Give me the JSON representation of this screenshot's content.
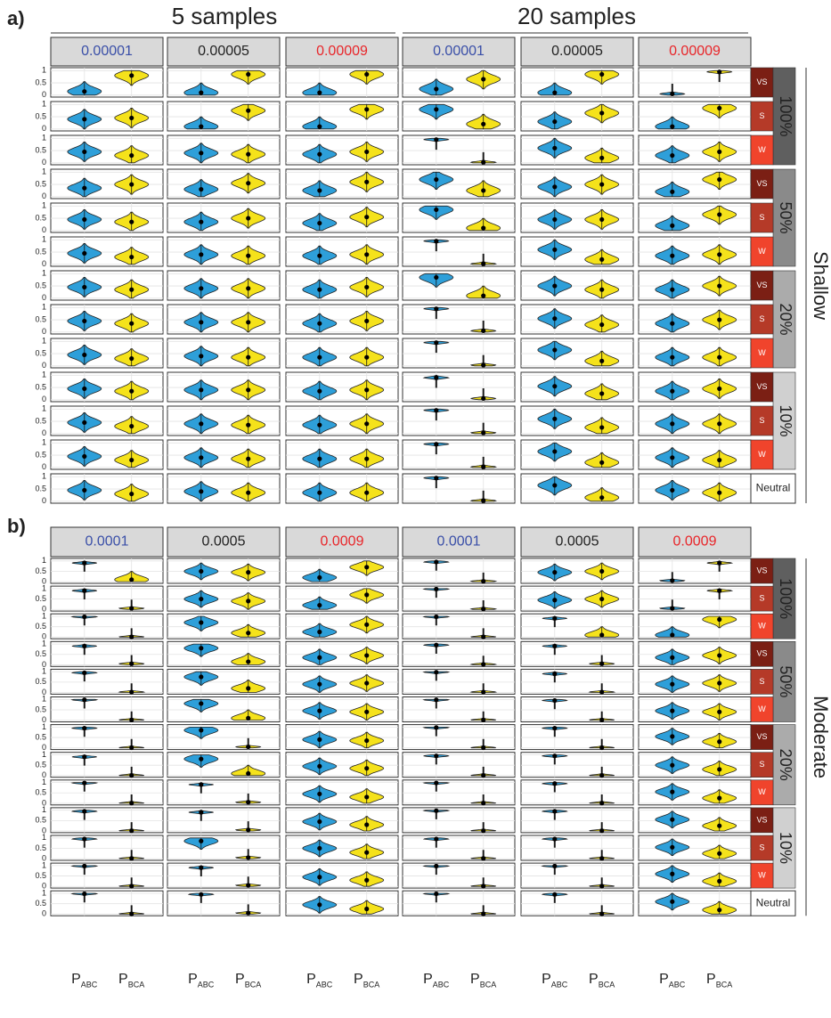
{
  "chart_data": {
    "type": "violin",
    "ylim": [
      -0.08,
      1.12
    ],
    "yticks": [
      0,
      0.5,
      1
    ],
    "grid": true,
    "x_symbol": "P",
    "categories": [
      "ABC",
      "BCA"
    ],
    "colors": [
      "#2e9fd9",
      "#f5e21b"
    ],
    "rate_colors": [
      "#3a4fa8",
      "#222222",
      "#e8262a"
    ],
    "selection": [
      "VS",
      "S",
      "W"
    ],
    "selection_colors": [
      "#7b1f14",
      "#b53a28",
      "#f0442c"
    ],
    "strengths": [
      "100%",
      "50%",
      "20%",
      "10%"
    ],
    "strength_colors": [
      "#5f5f5f",
      "#8a8a8a",
      "#ababab",
      "#d0d0d0"
    ],
    "neutral": "Neutral",
    "panels": [
      {
        "label": "a)",
        "depth": "Shallow",
        "groups": [
          "5 samples",
          "20 samples"
        ],
        "rates": [
          "0.00001",
          "0.00005",
          "0.00009",
          "0.00001",
          "0.00005",
          "0.00009"
        ],
        "medians": [
          [
            [
              0.15,
              0.8
            ],
            [
              0.1,
              0.85
            ],
            [
              0.1,
              0.85
            ],
            [
              0.25,
              0.65
            ],
            [
              0.1,
              0.85
            ],
            [
              0.05,
              0.95
            ]
          ],
          [
            [
              0.4,
              0.45
            ],
            [
              0.1,
              0.75
            ],
            [
              0.1,
              0.8
            ],
            [
              0.8,
              0.2
            ],
            [
              0.3,
              0.65
            ],
            [
              0.1,
              0.85
            ]
          ],
          [
            [
              0.45,
              0.3
            ],
            [
              0.4,
              0.35
            ],
            [
              0.35,
              0.45
            ],
            [
              0.95,
              0.02
            ],
            [
              0.6,
              0.2
            ],
            [
              0.3,
              0.45
            ]
          ],
          [
            [
              0.35,
              0.5
            ],
            [
              0.3,
              0.55
            ],
            [
              0.25,
              0.6
            ],
            [
              0.7,
              0.25
            ],
            [
              0.4,
              0.5
            ],
            [
              0.2,
              0.7
            ]
          ],
          [
            [
              0.45,
              0.35
            ],
            [
              0.35,
              0.5
            ],
            [
              0.3,
              0.55
            ],
            [
              0.85,
              0.1
            ],
            [
              0.45,
              0.45
            ],
            [
              0.2,
              0.65
            ]
          ],
          [
            [
              0.45,
              0.3
            ],
            [
              0.4,
              0.35
            ],
            [
              0.35,
              0.4
            ],
            [
              0.95,
              0.02
            ],
            [
              0.6,
              0.2
            ],
            [
              0.35,
              0.4
            ]
          ],
          [
            [
              0.45,
              0.35
            ],
            [
              0.4,
              0.4
            ],
            [
              0.35,
              0.45
            ],
            [
              0.85,
              0.1
            ],
            [
              0.5,
              0.35
            ],
            [
              0.35,
              0.5
            ]
          ],
          [
            [
              0.45,
              0.35
            ],
            [
              0.4,
              0.4
            ],
            [
              0.35,
              0.45
            ],
            [
              0.95,
              0.05
            ],
            [
              0.55,
              0.3
            ],
            [
              0.35,
              0.5
            ]
          ],
          [
            [
              0.45,
              0.3
            ],
            [
              0.4,
              0.35
            ],
            [
              0.35,
              0.35
            ],
            [
              0.95,
              0.03
            ],
            [
              0.65,
              0.2
            ],
            [
              0.35,
              0.35
            ]
          ],
          [
            [
              0.45,
              0.35
            ],
            [
              0.4,
              0.4
            ],
            [
              0.35,
              0.4
            ],
            [
              0.9,
              0.05
            ],
            [
              0.55,
              0.25
            ],
            [
              0.35,
              0.45
            ]
          ],
          [
            [
              0.45,
              0.3
            ],
            [
              0.4,
              0.35
            ],
            [
              0.35,
              0.4
            ],
            [
              0.95,
              0.03
            ],
            [
              0.6,
              0.25
            ],
            [
              0.4,
              0.4
            ]
          ],
          [
            [
              0.45,
              0.3
            ],
            [
              0.4,
              0.35
            ],
            [
              0.35,
              0.35
            ],
            [
              0.95,
              0.02
            ],
            [
              0.65,
              0.2
            ],
            [
              0.4,
              0.3
            ]
          ],
          [
            [
              0.45,
              0.3
            ],
            [
              0.4,
              0.35
            ],
            [
              0.35,
              0.35
            ],
            [
              0.95,
              0.02
            ],
            [
              0.65,
              0.15
            ],
            [
              0.45,
              0.35
            ]
          ]
        ]
      },
      {
        "label": "b)",
        "depth": "Moderate",
        "rates": [
          "0.0001",
          "0.0005",
          "0.0009",
          "0.0001",
          "0.0005",
          "0.0009"
        ],
        "medians": [
          [
            [
              0.9,
              0.1
            ],
            [
              0.5,
              0.45
            ],
            [
              0.2,
              0.7
            ],
            [
              0.95,
              0.02
            ],
            [
              0.45,
              0.5
            ],
            [
              0.05,
              0.9
            ]
          ],
          [
            [
              0.9,
              0.05
            ],
            [
              0.5,
              0.4
            ],
            [
              0.2,
              0.7
            ],
            [
              0.98,
              0.02
            ],
            [
              0.45,
              0.5
            ],
            [
              0.05,
              0.9
            ]
          ],
          [
            [
              0.98,
              0.01
            ],
            [
              0.7,
              0.2
            ],
            [
              0.25,
              0.6
            ],
            [
              0.98,
              0.01
            ],
            [
              0.9,
              0.1
            ],
            [
              0.1,
              0.85
            ]
          ],
          [
            [
              0.9,
              0.05
            ],
            [
              0.8,
              0.15
            ],
            [
              0.35,
              0.45
            ],
            [
              0.95,
              0.02
            ],
            [
              0.9,
              0.05
            ],
            [
              0.35,
              0.45
            ]
          ],
          [
            [
              0.95,
              0.02
            ],
            [
              0.75,
              0.2
            ],
            [
              0.4,
              0.45
            ],
            [
              0.98,
              0.02
            ],
            [
              0.9,
              0.02
            ],
            [
              0.4,
              0.45
            ]
          ],
          [
            [
              0.98,
              0.01
            ],
            [
              0.8,
              0.1
            ],
            [
              0.45,
              0.4
            ],
            [
              0.98,
              0.01
            ],
            [
              0.95,
              0.01
            ],
            [
              0.45,
              0.4
            ]
          ],
          [
            [
              0.95,
              0.01
            ],
            [
              0.85,
              0.05
            ],
            [
              0.4,
              0.35
            ],
            [
              0.98,
              0.01
            ],
            [
              0.95,
              0.01
            ],
            [
              0.55,
              0.3
            ]
          ],
          [
            [
              0.9,
              0.01
            ],
            [
              0.8,
              0.1
            ],
            [
              0.45,
              0.35
            ],
            [
              0.95,
              0.01
            ],
            [
              0.95,
              0.01
            ],
            [
              0.5,
              0.3
            ]
          ],
          [
            [
              0.98,
              0.01
            ],
            [
              0.9,
              0.05
            ],
            [
              0.45,
              0.3
            ],
            [
              0.98,
              0.01
            ],
            [
              0.95,
              0.01
            ],
            [
              0.55,
              0.25
            ]
          ],
          [
            [
              0.95,
              0.01
            ],
            [
              0.9,
              0.05
            ],
            [
              0.45,
              0.3
            ],
            [
              0.98,
              0.01
            ],
            [
              0.95,
              0.01
            ],
            [
              0.55,
              0.25
            ]
          ],
          [
            [
              0.95,
              0.01
            ],
            [
              0.85,
              0.05
            ],
            [
              0.5,
              0.3
            ],
            [
              0.95,
              0.01
            ],
            [
              0.95,
              0.01
            ],
            [
              0.55,
              0.25
            ]
          ],
          [
            [
              0.98,
              0.01
            ],
            [
              0.9,
              0.05
            ],
            [
              0.45,
              0.3
            ],
            [
              0.98,
              0.01
            ],
            [
              0.98,
              0.01
            ],
            [
              0.6,
              0.25
            ]
          ],
          [
            [
              0.98,
              0.01
            ],
            [
              0.95,
              0.05
            ],
            [
              0.45,
              0.25
            ],
            [
              0.98,
              0.01
            ],
            [
              0.95,
              0.01
            ],
            [
              0.6,
              0.2
            ]
          ]
        ]
      }
    ]
  }
}
